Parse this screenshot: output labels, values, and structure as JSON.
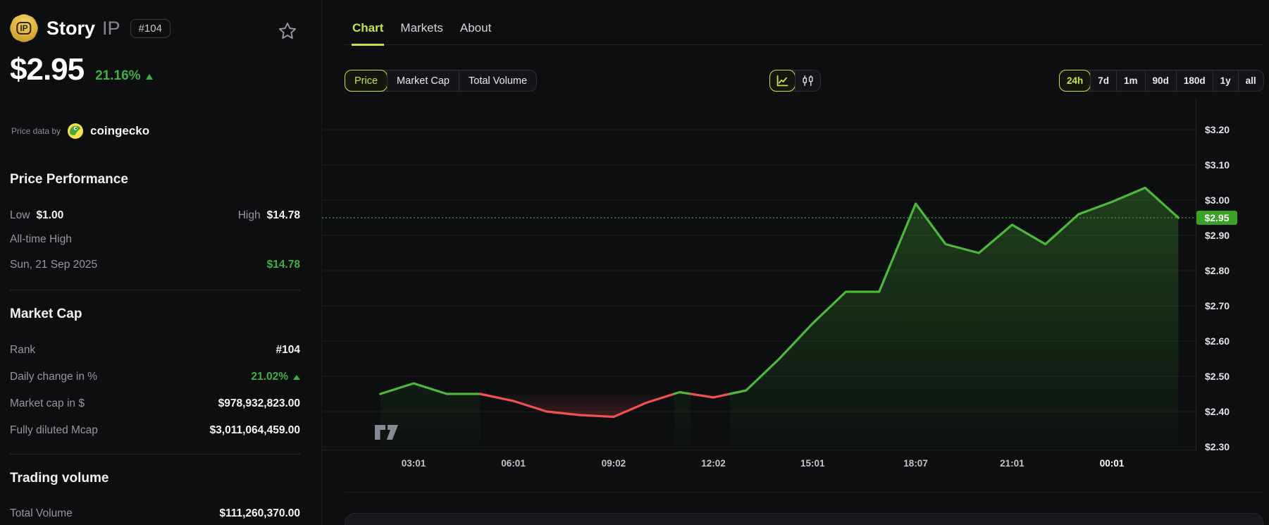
{
  "coin": {
    "name": "Story",
    "symbol": "IP",
    "logo_text": "IP",
    "rank_badge": "#104",
    "price": "$2.95",
    "change_pct": "21.16%"
  },
  "attribution": {
    "prefix": "Price data by",
    "provider": "coingecko"
  },
  "sidebar": {
    "price_performance": {
      "heading": "Price Performance",
      "low_label": "Low",
      "low_value": "$1.00",
      "high_label": "High",
      "high_value": "$14.78",
      "ath_label": "All-time High",
      "ath_date": "Sun, 21 Sep 2025",
      "ath_value": "$14.78"
    },
    "market_cap": {
      "heading": "Market Cap",
      "rows": [
        {
          "label": "Rank",
          "value": "#104"
        },
        {
          "label": "Daily change in %",
          "value": "21.02%"
        },
        {
          "label": "Market cap in $",
          "value": "$978,932,823.00"
        },
        {
          "label": "Fully diluted Mcap",
          "value": "$3,011,064,459.00"
        }
      ]
    },
    "trading_volume": {
      "heading": "Trading volume",
      "rows": [
        {
          "label": "Total Volume",
          "value": "$111,260,370.00"
        }
      ]
    }
  },
  "tabs": [
    {
      "label": "Chart",
      "active": true
    },
    {
      "label": "Markets",
      "active": false
    },
    {
      "label": "About",
      "active": false
    }
  ],
  "metric_toggle": [
    {
      "label": "Price",
      "active": true
    },
    {
      "label": "Market Cap",
      "active": false
    },
    {
      "label": "Total Volume",
      "active": false
    }
  ],
  "chart_type_toggle": [
    {
      "name": "line-chart",
      "active": true
    },
    {
      "name": "candlestick-chart",
      "active": false
    }
  ],
  "timeframes": [
    {
      "label": "24h",
      "active": true
    },
    {
      "label": "7d",
      "active": false
    },
    {
      "label": "1m",
      "active": false
    },
    {
      "label": "90d",
      "active": false
    },
    {
      "label": "180d",
      "active": false
    },
    {
      "label": "1y",
      "active": false
    },
    {
      "label": "all",
      "active": false
    }
  ],
  "colors": {
    "accent": "#c6e24b",
    "chart_green": "#4cb93c",
    "chart_red": "#ef5050",
    "dotted_green": "#4a9f3b",
    "badge_green": "#3aa226",
    "positive": "#3fae43",
    "grid": "#1b1c1f",
    "axis": "#26272b",
    "y_label": "#e2e3e6",
    "x_label": "#c2c4c8"
  },
  "chart_data": {
    "type": "line",
    "title": "Story IP price, last 24 hours",
    "unit": "USD",
    "baseline_price": 2.45,
    "current_price": 2.95,
    "current_price_label": "$2.95",
    "ylim": [
      2.29,
      3.29
    ],
    "grid": true,
    "y_axis": {
      "ticks": [
        {
          "label": "$3.20",
          "value": 3.2
        },
        {
          "label": "$3.10",
          "value": 3.1
        },
        {
          "label": "$3.00",
          "value": 3.0
        },
        {
          "label": "$2.90",
          "value": 2.9
        },
        {
          "label": "$2.80",
          "value": 2.8
        },
        {
          "label": "$2.70",
          "value": 2.7
        },
        {
          "label": "$2.60",
          "value": 2.6
        },
        {
          "label": "$2.50",
          "value": 2.5
        },
        {
          "label": "$2.40",
          "value": 2.4
        },
        {
          "label": "$2.30",
          "value": 2.3
        }
      ]
    },
    "x_axis": {
      "ticks": [
        {
          "label": "03:01",
          "hour": 3.0167,
          "bold": false
        },
        {
          "label": "06:01",
          "hour": 6.0167,
          "bold": false
        },
        {
          "label": "09:02",
          "hour": 9.0333,
          "bold": false
        },
        {
          "label": "12:02",
          "hour": 12.0333,
          "bold": false
        },
        {
          "label": "15:01",
          "hour": 15.0167,
          "bold": false
        },
        {
          "label": "18:07",
          "hour": 18.1167,
          "bold": false
        },
        {
          "label": "21:01",
          "hour": 21.0167,
          "bold": false
        },
        {
          "label": "00:01",
          "hour": 24.0167,
          "bold": true
        }
      ]
    },
    "points": [
      {
        "time": "02:01",
        "hour": 2.0167,
        "price": 2.45
      },
      {
        "time": "03:01",
        "hour": 3.0167,
        "price": 2.48
      },
      {
        "time": "04:01",
        "hour": 4.0167,
        "price": 2.45
      },
      {
        "time": "05:01",
        "hour": 5.0167,
        "price": 2.45
      },
      {
        "time": "06:01",
        "hour": 6.0167,
        "price": 2.43
      },
      {
        "time": "07:01",
        "hour": 7.0167,
        "price": 2.4
      },
      {
        "time": "08:01",
        "hour": 8.0167,
        "price": 2.39
      },
      {
        "time": "09:02",
        "hour": 9.0333,
        "price": 2.385
      },
      {
        "time": "10:01",
        "hour": 10.0167,
        "price": 2.425
      },
      {
        "time": "11:01",
        "hour": 11.0167,
        "price": 2.455
      },
      {
        "time": "12:02",
        "hour": 12.0333,
        "price": 2.44
      },
      {
        "time": "13:01",
        "hour": 13.0167,
        "price": 2.46
      },
      {
        "time": "14:01",
        "hour": 14.0167,
        "price": 2.55
      },
      {
        "time": "15:01",
        "hour": 15.0167,
        "price": 2.65
      },
      {
        "time": "16:01",
        "hour": 16.0167,
        "price": 2.74
      },
      {
        "time": "17:01",
        "hour": 17.0167,
        "price": 2.74
      },
      {
        "time": "18:07",
        "hour": 18.1167,
        "price": 2.99
      },
      {
        "time": "19:01",
        "hour": 19.0167,
        "price": 2.875
      },
      {
        "time": "20:01",
        "hour": 20.0167,
        "price": 2.85
      },
      {
        "time": "21:01",
        "hour": 21.0167,
        "price": 2.93
      },
      {
        "time": "22:01",
        "hour": 22.0167,
        "price": 2.875
      },
      {
        "time": "23:01",
        "hour": 23.0167,
        "price": 2.96
      },
      {
        "time": "00:01",
        "hour": 24.0167,
        "price": 2.995
      },
      {
        "time": "01:01",
        "hour": 25.0167,
        "price": 3.035
      },
      {
        "time": "02:01",
        "hour": 26.0167,
        "price": 2.95
      }
    ]
  }
}
